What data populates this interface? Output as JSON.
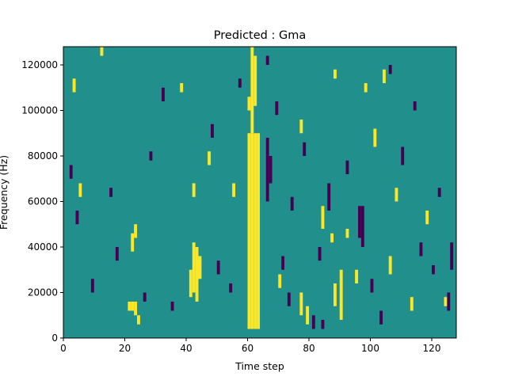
{
  "chart_data": {
    "type": "heatmap",
    "title": "Predicted : Gma",
    "xlabel": "Time step",
    "ylabel": "Frequency (Hz)",
    "xlim": [
      0,
      128
    ],
    "ylim": [
      0,
      128000
    ],
    "x_ticks": [
      0,
      20,
      40,
      60,
      80,
      100,
      120
    ],
    "y_ticks": [
      0,
      20000,
      40000,
      60000,
      80000,
      100000,
      120000
    ],
    "x_tick_labels": [
      "0",
      "20",
      "40",
      "60",
      "80",
      "100",
      "120"
    ],
    "y_tick_labels": [
      "0",
      "20000",
      "40000",
      "60000",
      "80000",
      "100000",
      "120000"
    ],
    "value_levels": [
      -1,
      0,
      1
    ],
    "colors": {
      "low": "#440154",
      "mid": "#21908d",
      "high": "#fde725"
    },
    "grid": false,
    "background_value": 0,
    "cells": [
      {
        "x_start": 60,
        "x_end": 61,
        "y_start": 4000,
        "y_end": 90000,
        "value": 1
      },
      {
        "x_start": 61,
        "x_end": 62,
        "y_start": 4000,
        "y_end": 90000,
        "value": 1
      },
      {
        "x_start": 62,
        "x_end": 63,
        "y_start": 4000,
        "y_end": 90000,
        "value": 1
      },
      {
        "x_start": 63,
        "x_end": 64,
        "y_start": 4000,
        "y_end": 90000,
        "value": 1
      },
      {
        "x_start": 61,
        "x_end": 62,
        "y_start": 90000,
        "y_end": 128000,
        "value": 1
      },
      {
        "x_start": 62,
        "x_end": 63,
        "y_start": 102000,
        "y_end": 124000,
        "value": 1
      },
      {
        "x_start": 60,
        "x_end": 61,
        "y_start": 100000,
        "y_end": 106000,
        "value": 1
      },
      {
        "x_start": 42,
        "x_end": 43,
        "y_start": 20000,
        "y_end": 42000,
        "value": 1
      },
      {
        "x_start": 43,
        "x_end": 44,
        "y_start": 16000,
        "y_end": 40000,
        "value": 1
      },
      {
        "x_start": 41,
        "x_end": 42,
        "y_start": 18000,
        "y_end": 30000,
        "value": 1
      },
      {
        "x_start": 44,
        "x_end": 45,
        "y_start": 26000,
        "y_end": 36000,
        "value": 1
      },
      {
        "x_start": 22,
        "x_end": 23,
        "y_start": 12000,
        "y_end": 16000,
        "value": 1
      },
      {
        "x_start": 23,
        "x_end": 24,
        "y_start": 10000,
        "y_end": 16000,
        "value": 1
      },
      {
        "x_start": 24,
        "x_end": 25,
        "y_start": 6000,
        "y_end": 10000,
        "value": 1
      },
      {
        "x_start": 21,
        "x_end": 22,
        "y_start": 12000,
        "y_end": 16000,
        "value": 1
      },
      {
        "x_start": 22,
        "x_end": 23,
        "y_start": 38000,
        "y_end": 46000,
        "value": 1
      },
      {
        "x_start": 23,
        "x_end": 24,
        "y_start": 44000,
        "y_end": 50000,
        "value": 1
      },
      {
        "x_start": 84,
        "x_end": 85,
        "y_start": 4000,
        "y_end": 8000,
        "value": -1
      },
      {
        "x_start": 100,
        "x_end": 101,
        "y_start": 20000,
        "y_end": 26000,
        "value": -1
      },
      {
        "x_start": 96,
        "x_end": 97,
        "y_start": 44000,
        "y_end": 58000,
        "value": -1
      },
      {
        "x_start": 97,
        "x_end": 98,
        "y_start": 40000,
        "y_end": 58000,
        "value": -1
      },
      {
        "x_start": 66,
        "x_end": 67,
        "y_start": 60000,
        "y_end": 88000,
        "value": -1
      },
      {
        "x_start": 67,
        "x_end": 68,
        "y_start": 68000,
        "y_end": 80000,
        "value": -1
      },
      {
        "x_start": 71,
        "x_end": 72,
        "y_start": 30000,
        "y_end": 36000,
        "value": -1
      },
      {
        "x_start": 126,
        "x_end": 127,
        "y_start": 30000,
        "y_end": 42000,
        "value": -1
      },
      {
        "x_start": 86,
        "x_end": 87,
        "y_start": 56000,
        "y_end": 68000,
        "value": -1
      },
      {
        "x_start": 84,
        "x_end": 85,
        "y_start": 48000,
        "y_end": 58000,
        "value": 1
      },
      {
        "x_start": 87,
        "x_end": 88,
        "y_start": 42000,
        "y_end": 46000,
        "value": 1
      },
      {
        "x_start": 92,
        "x_end": 93,
        "y_start": 44000,
        "y_end": 48000,
        "value": 1
      },
      {
        "x_start": 106,
        "x_end": 107,
        "y_start": 28000,
        "y_end": 36000,
        "value": 1
      },
      {
        "x_start": 70,
        "x_end": 71,
        "y_start": 22000,
        "y_end": 28000,
        "value": 1
      },
      {
        "x_start": 95,
        "x_end": 96,
        "y_start": 24000,
        "y_end": 30000,
        "value": 1
      },
      {
        "x_start": 90,
        "x_end": 91,
        "y_start": 8000,
        "y_end": 30000,
        "value": 1
      },
      {
        "x_start": 88,
        "x_end": 89,
        "y_start": 14000,
        "y_end": 24000,
        "value": 1
      },
      {
        "x_start": 79,
        "x_end": 80,
        "y_start": 6000,
        "y_end": 14000,
        "value": 1
      },
      {
        "x_start": 77,
        "x_end": 78,
        "y_start": 10000,
        "y_end": 20000,
        "value": 1
      },
      {
        "x_start": 124,
        "x_end": 125,
        "y_start": 14000,
        "y_end": 18000,
        "value": 1
      },
      {
        "x_start": 113,
        "x_end": 114,
        "y_start": 12000,
        "y_end": 18000,
        "value": 1
      },
      {
        "x_start": 118,
        "x_end": 119,
        "y_start": 50000,
        "y_end": 56000,
        "value": 1
      },
      {
        "x_start": 108,
        "x_end": 109,
        "y_start": 60000,
        "y_end": 66000,
        "value": 1
      },
      {
        "x_start": 101,
        "x_end": 102,
        "y_start": 84000,
        "y_end": 92000,
        "value": 1
      },
      {
        "x_start": 98,
        "x_end": 99,
        "y_start": 108000,
        "y_end": 112000,
        "value": 1
      },
      {
        "x_start": 104,
        "x_end": 105,
        "y_start": 112000,
        "y_end": 118000,
        "value": 1
      },
      {
        "x_start": 88,
        "x_end": 89,
        "y_start": 114000,
        "y_end": 118000,
        "value": 1
      },
      {
        "x_start": 77,
        "x_end": 78,
        "y_start": 90000,
        "y_end": 96000,
        "value": 1
      },
      {
        "x_start": 55,
        "x_end": 56,
        "y_start": 62000,
        "y_end": 68000,
        "value": 1
      },
      {
        "x_start": 47,
        "x_end": 48,
        "y_start": 76000,
        "y_end": 82000,
        "value": 1
      },
      {
        "x_start": 42,
        "x_end": 43,
        "y_start": 62000,
        "y_end": 68000,
        "value": 1
      },
      {
        "x_start": 38,
        "x_end": 39,
        "y_start": 108000,
        "y_end": 112000,
        "value": 1
      },
      {
        "x_start": 12,
        "x_end": 13,
        "y_start": 124000,
        "y_end": 128000,
        "value": 1
      },
      {
        "x_start": 3,
        "x_end": 4,
        "y_start": 108000,
        "y_end": 114000,
        "value": 1
      },
      {
        "x_start": 5,
        "x_end": 6,
        "y_start": 62000,
        "y_end": 68000,
        "value": 1
      },
      {
        "x_start": 2,
        "x_end": 3,
        "y_start": 70000,
        "y_end": 76000,
        "value": -1
      },
      {
        "x_start": 4,
        "x_end": 5,
        "y_start": 50000,
        "y_end": 56000,
        "value": -1
      },
      {
        "x_start": 15,
        "x_end": 16,
        "y_start": 62000,
        "y_end": 66000,
        "value": -1
      },
      {
        "x_start": 28,
        "x_end": 29,
        "y_start": 78000,
        "y_end": 82000,
        "value": -1
      },
      {
        "x_start": 32,
        "x_end": 33,
        "y_start": 104000,
        "y_end": 110000,
        "value": -1
      },
      {
        "x_start": 48,
        "x_end": 49,
        "y_start": 88000,
        "y_end": 94000,
        "value": -1
      },
      {
        "x_start": 57,
        "x_end": 58,
        "y_start": 110000,
        "y_end": 114000,
        "value": -1
      },
      {
        "x_start": 66,
        "x_end": 67,
        "y_start": 120000,
        "y_end": 124000,
        "value": -1
      },
      {
        "x_start": 69,
        "x_end": 70,
        "y_start": 98000,
        "y_end": 104000,
        "value": -1
      },
      {
        "x_start": 74,
        "x_end": 75,
        "y_start": 56000,
        "y_end": 62000,
        "value": -1
      },
      {
        "x_start": 78,
        "x_end": 79,
        "y_start": 80000,
        "y_end": 86000,
        "value": -1
      },
      {
        "x_start": 83,
        "x_end": 84,
        "y_start": 34000,
        "y_end": 40000,
        "value": -1
      },
      {
        "x_start": 92,
        "x_end": 93,
        "y_start": 72000,
        "y_end": 78000,
        "value": -1
      },
      {
        "x_start": 106,
        "x_end": 107,
        "y_start": 116000,
        "y_end": 120000,
        "value": -1
      },
      {
        "x_start": 110,
        "x_end": 111,
        "y_start": 76000,
        "y_end": 84000,
        "value": -1
      },
      {
        "x_start": 114,
        "x_end": 115,
        "y_start": 100000,
        "y_end": 104000,
        "value": -1
      },
      {
        "x_start": 120,
        "x_end": 121,
        "y_start": 28000,
        "y_end": 32000,
        "value": -1
      },
      {
        "x_start": 125,
        "x_end": 126,
        "y_start": 12000,
        "y_end": 20000,
        "value": -1
      },
      {
        "x_start": 9,
        "x_end": 10,
        "y_start": 20000,
        "y_end": 26000,
        "value": -1
      },
      {
        "x_start": 17,
        "x_end": 18,
        "y_start": 34000,
        "y_end": 40000,
        "value": -1
      },
      {
        "x_start": 26,
        "x_end": 27,
        "y_start": 16000,
        "y_end": 20000,
        "value": -1
      },
      {
        "x_start": 35,
        "x_end": 36,
        "y_start": 12000,
        "y_end": 16000,
        "value": -1
      },
      {
        "x_start": 50,
        "x_end": 51,
        "y_start": 28000,
        "y_end": 34000,
        "value": -1
      },
      {
        "x_start": 54,
        "x_end": 55,
        "y_start": 20000,
        "y_end": 24000,
        "value": -1
      },
      {
        "x_start": 73,
        "x_end": 74,
        "y_start": 14000,
        "y_end": 20000,
        "value": -1
      },
      {
        "x_start": 81,
        "x_end": 82,
        "y_start": 4000,
        "y_end": 10000,
        "value": -1
      },
      {
        "x_start": 103,
        "x_end": 104,
        "y_start": 6000,
        "y_end": 12000,
        "value": -1
      },
      {
        "x_start": 116,
        "x_end": 117,
        "y_start": 36000,
        "y_end": 42000,
        "value": -1
      },
      {
        "x_start": 122,
        "x_end": 123,
        "y_start": 62000,
        "y_end": 66000,
        "value": -1
      }
    ]
  }
}
